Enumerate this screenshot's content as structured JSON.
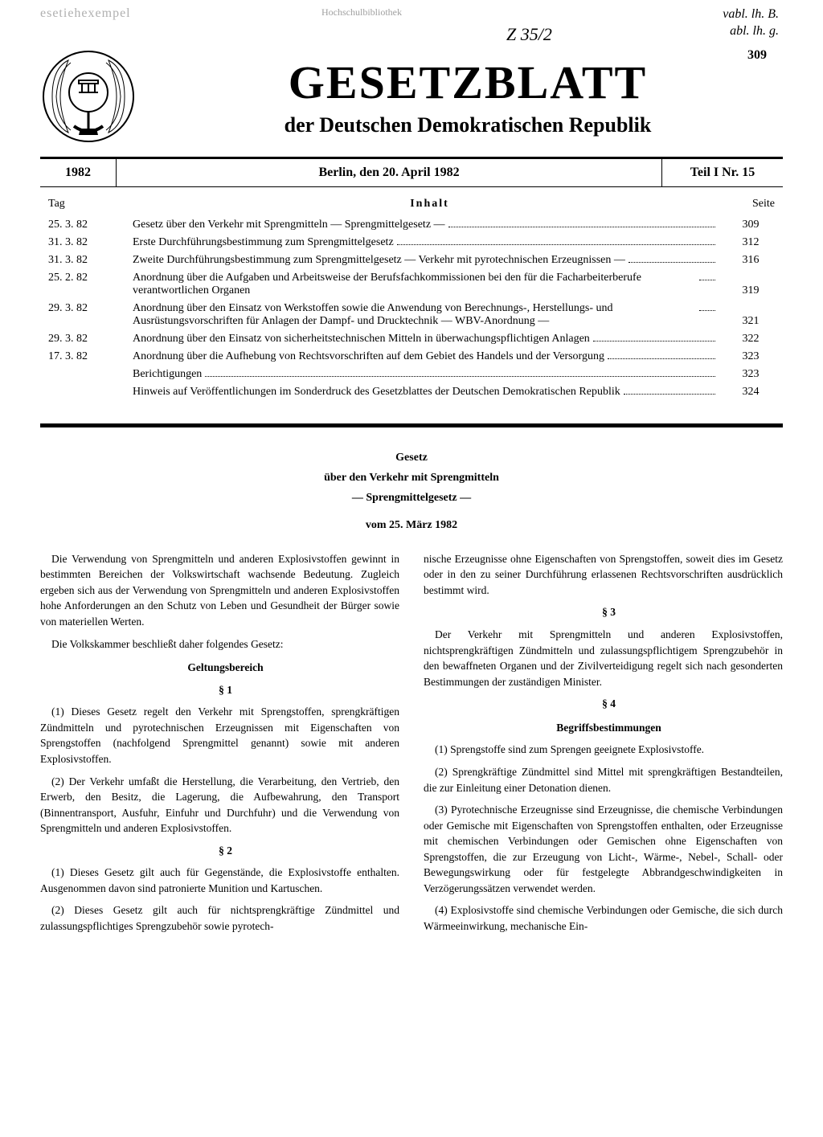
{
  "colors": {
    "text": "#000000",
    "background": "#ffffff",
    "faded": "#a0a0a0"
  },
  "marks": {
    "stamp": "esetiehexempel",
    "library1": "",
    "library2": "Hochschulbibliothek",
    "handwritten1": "Z 35/2",
    "handwritten2": "vabl. lh. B.",
    "handwritten3": "abl. lh. g."
  },
  "page_number": "309",
  "masthead": {
    "title": "GESETZBLATT",
    "subtitle": "der Deutschen Demokratischen Republik"
  },
  "info_bar": {
    "year": "1982",
    "location_date": "Berlin, den 20. April 1982",
    "issue": "Teil I  Nr. 15"
  },
  "toc": {
    "header_date": "Tag",
    "header_content": "Inhalt",
    "header_page": "Seite",
    "rows": [
      {
        "date": "25. 3. 82",
        "text": "Gesetz über den Verkehr mit Sprengmitteln — Sprengmittelgesetz —",
        "page": "309",
        "indent": false
      },
      {
        "date": "31. 3. 82",
        "text": "Erste Durchführungsbestimmung zum Sprengmittelgesetz",
        "page": "312",
        "indent": false
      },
      {
        "date": "31. 3. 82",
        "text": "Zweite Durchführungsbestimmung zum Sprengmittelgesetz — Verkehr mit pyrotechnischen Erzeugnissen —",
        "page": "316",
        "indent": false
      },
      {
        "date": "25. 2. 82",
        "text": "Anordnung über die Aufgaben und Arbeitsweise der Berufsfachkommissionen bei den für die Facharbeiterberufe verantwortlichen Organen",
        "page": "319",
        "indent": false
      },
      {
        "date": "29. 3. 82",
        "text": "Anordnung über den Einsatz von Werkstoffen sowie die Anwendung von Berechnungs-, Herstellungs- und Ausrüstungsvorschriften für Anlagen der Dampf- und Drucktechnik — WBV-Anordnung —",
        "page": "321",
        "indent": false
      },
      {
        "date": "29. 3. 82",
        "text": "Anordnung über den Einsatz von sicherheitstechnischen Mitteln in überwachungspflichtigen Anlagen",
        "page": "322",
        "indent": false
      },
      {
        "date": "17. 3. 82",
        "text": "Anordnung über die Aufhebung von Rechtsvorschriften auf dem Gebiet des Handels und der Versorgung",
        "page": "323",
        "indent": false
      },
      {
        "date": "",
        "text": "Berichtigungen",
        "page": "323",
        "indent": false
      },
      {
        "date": "",
        "text": "Hinweis auf Veröffentlichungen im Sonderdruck des Gesetzblattes der Deutschen Demokratischen Republik",
        "page": "324",
        "indent": false
      }
    ]
  },
  "law": {
    "title_line1": "Gesetz",
    "title_line2": "über den Verkehr mit Sprengmitteln",
    "title_line3": "— Sprengmittelgesetz —",
    "title_line4": "vom 25. März 1982",
    "preamble1": "Die Verwendung von Sprengmitteln und anderen Explosivstoffen gewinnt in bestimmten Bereichen der Volkswirtschaft wachsende Bedeutung. Zugleich ergeben sich aus der Verwendung von Sprengmitteln und anderen Explosivstoffen hohe Anforderungen an den Schutz von Leben und Gesundheit der Bürger sowie von materiellen Werten.",
    "preamble2": "Die Volkskammer beschließt daher folgendes Gesetz:",
    "section1_title": "Geltungsbereich",
    "para1_num": "§ 1",
    "para1_1": "(1) Dieses Gesetz regelt den Verkehr mit Sprengstoffen, sprengkräftigen Zündmitteln und pyrotechnischen Erzeugnissen mit Eigenschaften von Sprengstoffen (nachfolgend Sprengmittel genannt) sowie mit anderen Explosivstoffen.",
    "para1_2": "(2) Der Verkehr umfaßt die Herstellung, die Verarbeitung, den Vertrieb, den Erwerb, den Besitz, die Lagerung, die Aufbewahrung, den Transport (Binnentransport, Ausfuhr, Einfuhr und Durchfuhr) und die Verwendung von Sprengmitteln und anderen Explosivstoffen.",
    "para2_num": "§ 2",
    "para2_1": "(1) Dieses Gesetz gilt auch für Gegenstände, die Explosivstoffe enthalten. Ausgenommen davon sind patronierte Munition und Kartuschen.",
    "para2_2": "(2) Dieses Gesetz gilt auch für nichtsprengkräftige Zündmittel und zulassungspflichtiges Sprengzubehör sowie pyrotech-",
    "col2_cont": "nische Erzeugnisse ohne Eigenschaften von Sprengstoffen, soweit dies im Gesetz oder in den zu seiner Durchführung erlassenen Rechtsvorschriften ausdrücklich bestimmt wird.",
    "para3_num": "§ 3",
    "para3_1": "Der Verkehr mit Sprengmitteln und anderen Explosivstoffen, nichtsprengkräftigen Zündmitteln und zulassungspflichtigem Sprengzubehör in den bewaffneten Organen und der Zivilverteidigung regelt sich nach gesonderten Bestimmungen der zuständigen Minister.",
    "para4_num": "§ 4",
    "section4_title": "Begriffsbestimmungen",
    "para4_1": "(1) Sprengstoffe sind zum Sprengen geeignete Explosivstoffe.",
    "para4_2": "(2) Sprengkräftige Zündmittel sind Mittel mit sprengkräftigen Bestandteilen, die zur Einleitung einer Detonation dienen.",
    "para4_3": "(3) Pyrotechnische Erzeugnisse sind Erzeugnisse, die chemische Verbindungen oder Gemische mit Eigenschaften von Sprengstoffen enthalten, oder Erzeugnisse mit chemischen Verbindungen oder Gemischen ohne Eigenschaften von Sprengstoffen, die zur Erzeugung von Licht-, Wärme-, Nebel-, Schall- oder Bewegungswirkung oder für festgelegte Abbrandgeschwindigkeiten in Verzögerungssätzen verwendet werden.",
    "para4_4": "(4) Explosivstoffe sind chemische Verbindungen oder Gemische, die sich durch Wärmeeinwirkung, mechanische Ein-"
  }
}
